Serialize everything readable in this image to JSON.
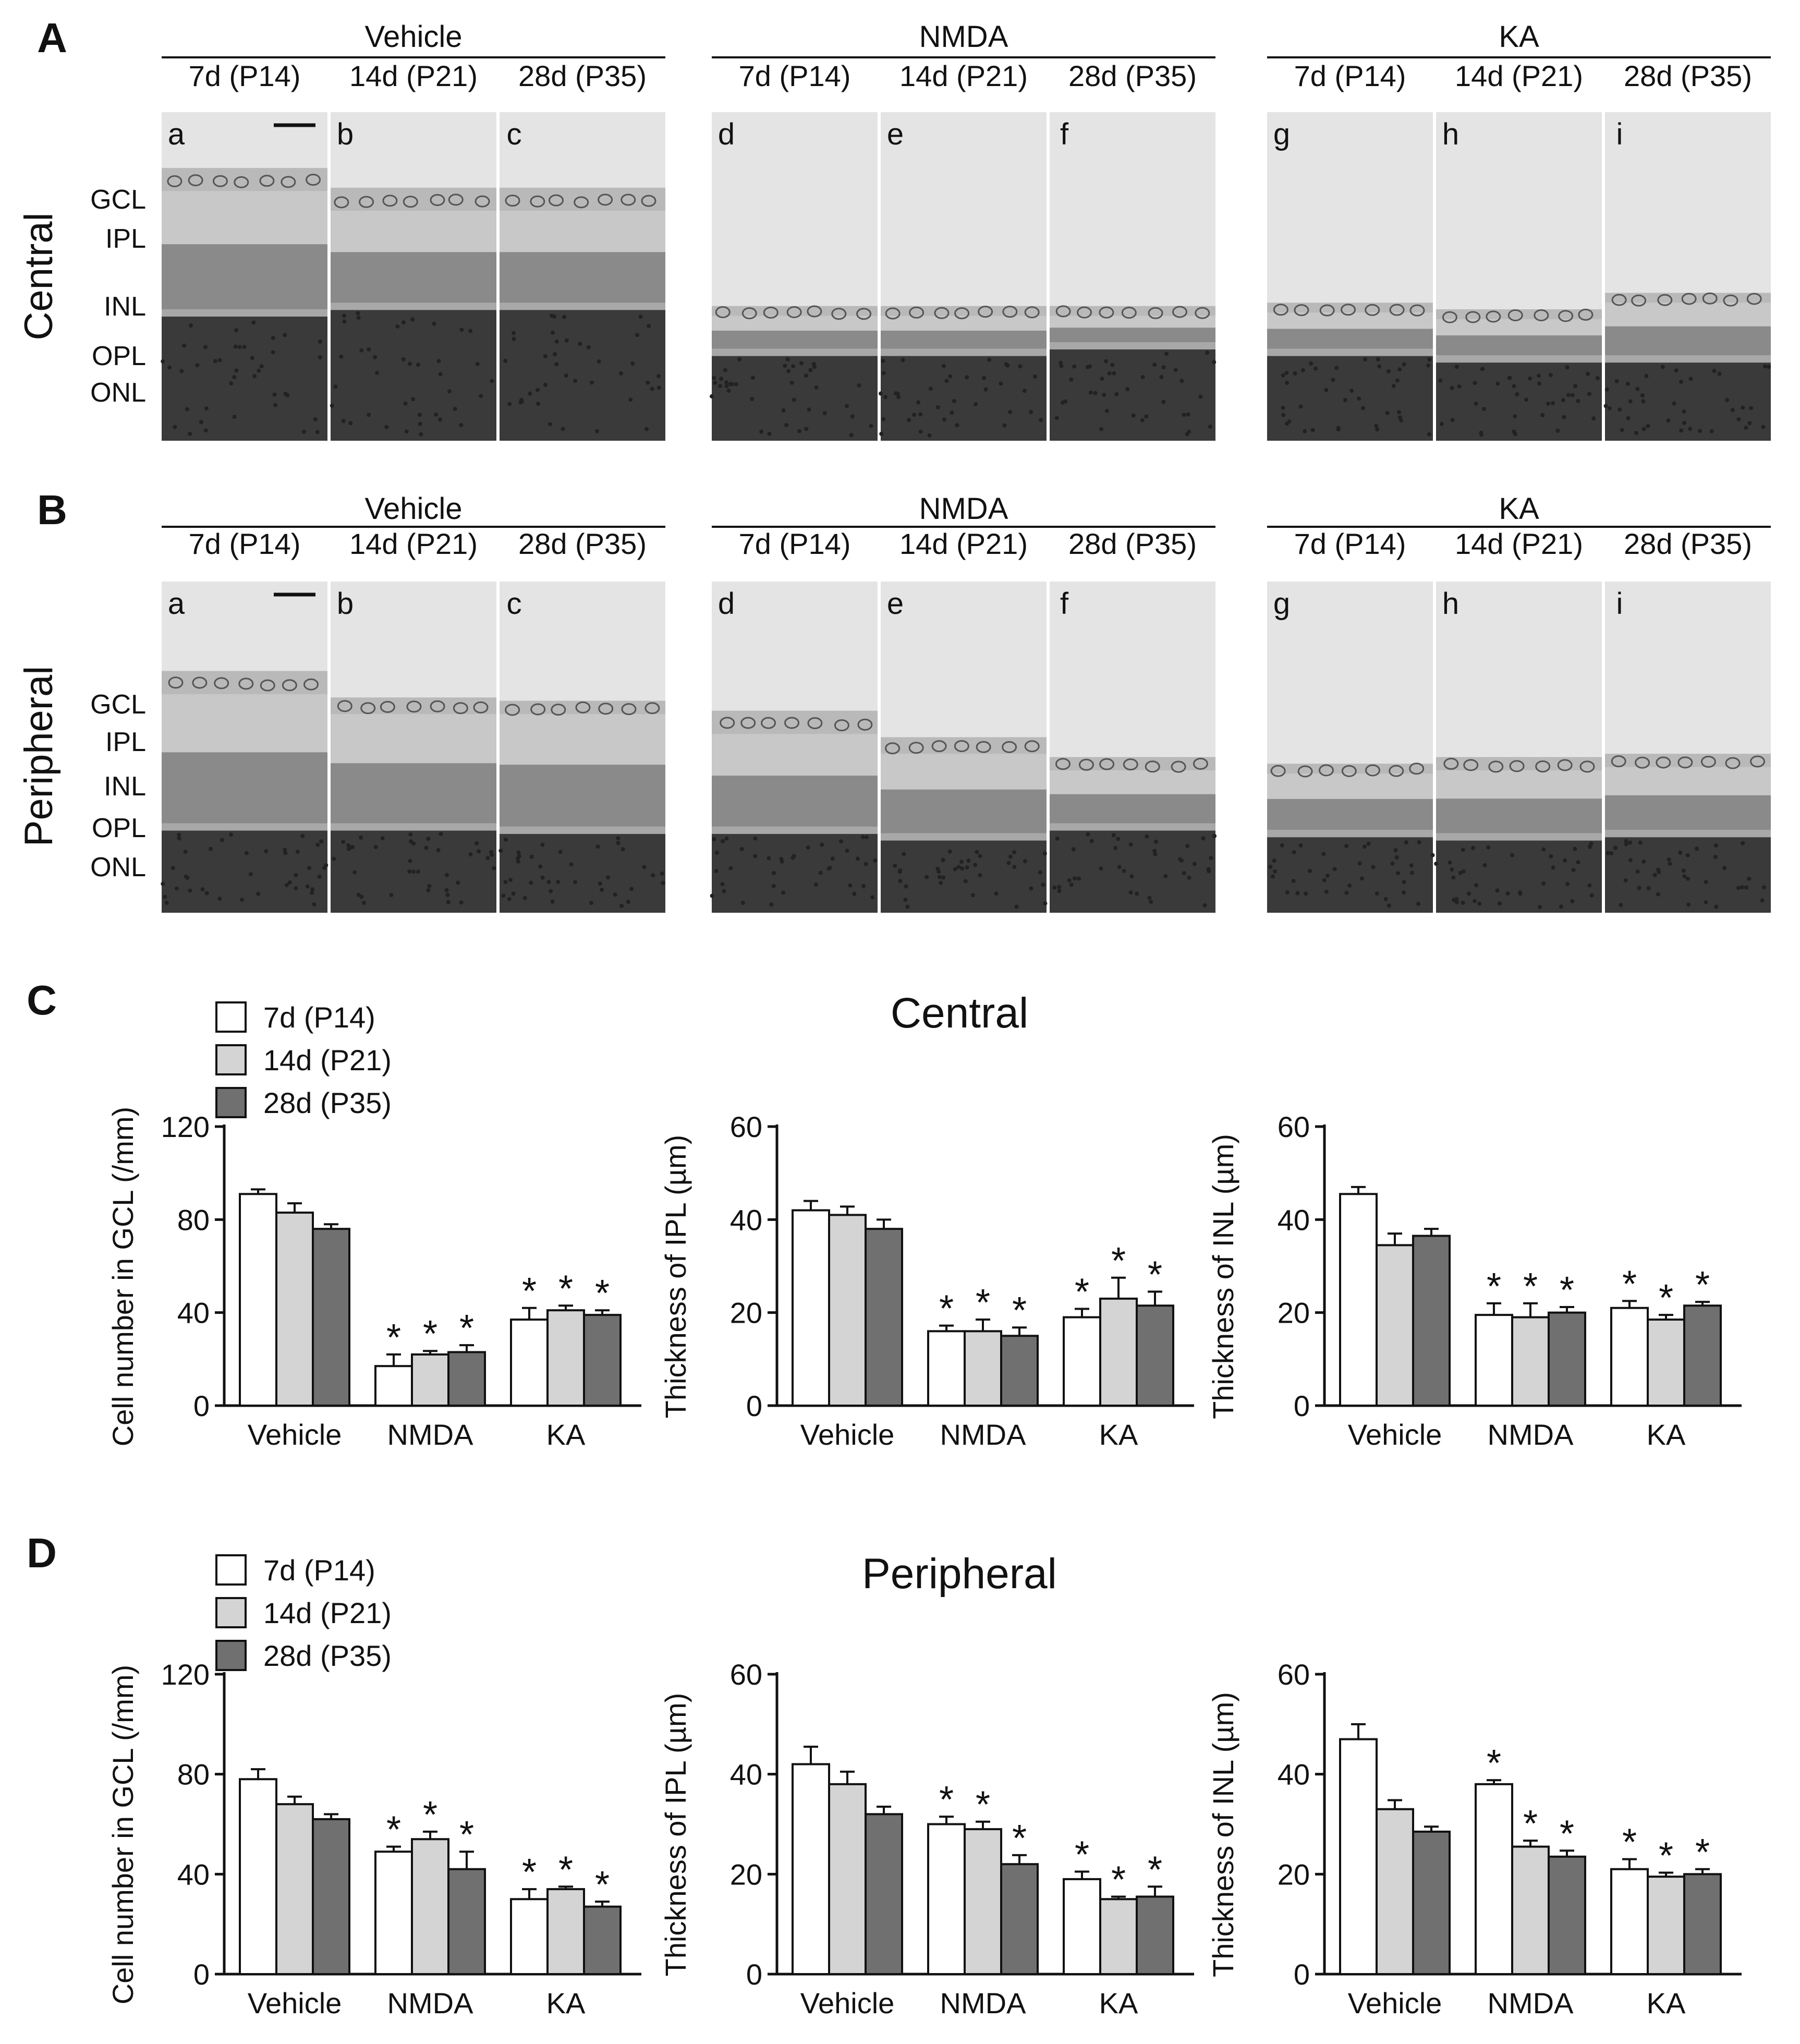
{
  "figure": {
    "panels": [
      {
        "id": "A",
        "label": "A",
        "region": "Central"
      },
      {
        "id": "B",
        "label": "B",
        "region": "Peripheral"
      },
      {
        "id": "C",
        "label": "C",
        "title": "Central"
      },
      {
        "id": "D",
        "label": "D",
        "title": "Peripheral"
      }
    ],
    "groups": [
      "Vehicle",
      "NMDA",
      "KA"
    ],
    "timepoints": [
      "7d (P14)",
      "14d (P21)",
      "28d (P35)"
    ],
    "micrograph_letters": [
      "a",
      "b",
      "c",
      "d",
      "e",
      "f",
      "g",
      "h",
      "i"
    ],
    "layers": [
      "GCL",
      "IPL",
      "INL",
      "OPL",
      "ONL"
    ],
    "legend": [
      "7d (P14)",
      "14d (P21)",
      "28d (P35)"
    ],
    "significance_marker": "*"
  },
  "colors": {
    "series": [
      "#ffffff",
      "#d4d4d4",
      "#707070"
    ],
    "axis": "#111111"
  },
  "micrographs": {
    "A": [
      {
        "tissue_top": 0.17,
        "band": 0.6,
        "ganglion": 0.24
      },
      {
        "tissue_top": 0.23,
        "band": 0.58,
        "ganglion": 0.3
      },
      {
        "tissue_top": 0.23,
        "band": 0.58,
        "ganglion": 0.3
      },
      {
        "tissue_top": 0.59,
        "band": 0.72,
        "ganglion": 0.62
      },
      {
        "tissue_top": 0.59,
        "band": 0.72,
        "ganglion": 0.62
      },
      {
        "tissue_top": 0.59,
        "band": 0.7,
        "ganglion": 0.62
      },
      {
        "tissue_top": 0.58,
        "band": 0.72,
        "ganglion": 0.61
      },
      {
        "tissue_top": 0.6,
        "band": 0.74,
        "ganglion": 0.63
      },
      {
        "tissue_top": 0.55,
        "band": 0.74,
        "ganglion": 0.58
      }
    ],
    "B": [
      {
        "tissue_top": 0.27,
        "band": 0.73,
        "ganglion": 0.34
      },
      {
        "tissue_top": 0.35,
        "band": 0.73,
        "ganglion": 0.4
      },
      {
        "tissue_top": 0.36,
        "band": 0.74,
        "ganglion": 0.4
      },
      {
        "tissue_top": 0.39,
        "band": 0.74,
        "ganglion": 0.46
      },
      {
        "tissue_top": 0.47,
        "band": 0.76,
        "ganglion": 0.52
      },
      {
        "tissue_top": 0.53,
        "band": 0.73,
        "ganglion": 0.57
      },
      {
        "tissue_top": 0.55,
        "band": 0.75,
        "ganglion": 0.58
      },
      {
        "tissue_top": 0.53,
        "band": 0.76,
        "ganglion": 0.57
      },
      {
        "tissue_top": 0.52,
        "band": 0.75,
        "ganglion": 0.56
      }
    ]
  },
  "chart_data": [
    {
      "panel": "C",
      "type": "bar",
      "title": "Central",
      "ylabel": "Cell number in GCL (/mm)",
      "ylim": [
        0,
        120
      ],
      "yticks": [
        0,
        40,
        80,
        120
      ],
      "categories": [
        "Vehicle",
        "NMDA",
        "KA"
      ],
      "series": [
        {
          "name": "7d (P14)",
          "values": [
            91,
            17,
            37
          ],
          "errors": [
            2,
            5,
            5
          ],
          "sig": [
            false,
            true,
            true
          ]
        },
        {
          "name": "14d (P21)",
          "values": [
            83,
            22,
            41
          ],
          "errors": [
            4,
            1.5,
            2
          ],
          "sig": [
            false,
            true,
            true
          ]
        },
        {
          "name": "28d (P35)",
          "values": [
            76,
            23,
            39
          ],
          "errors": [
            2,
            3,
            2
          ],
          "sig": [
            false,
            true,
            true
          ]
        }
      ]
    },
    {
      "panel": "C",
      "type": "bar",
      "title": "",
      "ylabel": "Thickness of IPL (µm)",
      "ylim": [
        0,
        60
      ],
      "yticks": [
        0,
        20,
        40,
        60
      ],
      "categories": [
        "Vehicle",
        "NMDA",
        "KA"
      ],
      "series": [
        {
          "name": "7d (P14)",
          "values": [
            42,
            16,
            19
          ],
          "errors": [
            2,
            1.2,
            1.8
          ],
          "sig": [
            false,
            true,
            true
          ]
        },
        {
          "name": "14d (P21)",
          "values": [
            41,
            16,
            23
          ],
          "errors": [
            1.8,
            2.5,
            4.5
          ],
          "sig": [
            false,
            true,
            true
          ]
        },
        {
          "name": "28d (P35)",
          "values": [
            38,
            15,
            21.5
          ],
          "errors": [
            2,
            1.8,
            3
          ],
          "sig": [
            false,
            true,
            true
          ]
        }
      ]
    },
    {
      "panel": "C",
      "type": "bar",
      "title": "",
      "ylabel": "Thickness of INL (µm)",
      "ylim": [
        0,
        60
      ],
      "yticks": [
        0,
        20,
        40,
        60
      ],
      "categories": [
        "Vehicle",
        "NMDA",
        "KA"
      ],
      "series": [
        {
          "name": "7d (P14)",
          "values": [
            45.5,
            19.5,
            21
          ],
          "errors": [
            1.5,
            2.5,
            1.5
          ],
          "sig": [
            false,
            true,
            true
          ]
        },
        {
          "name": "14d (P21)",
          "values": [
            34.5,
            19,
            18.5
          ],
          "errors": [
            2.5,
            3,
            1
          ],
          "sig": [
            false,
            true,
            true
          ]
        },
        {
          "name": "28d (P35)",
          "values": [
            36.5,
            20,
            21.5
          ],
          "errors": [
            1.5,
            1.2,
            0.8
          ],
          "sig": [
            false,
            true,
            true
          ]
        }
      ]
    },
    {
      "panel": "D",
      "type": "bar",
      "title": "Peripheral",
      "ylabel": "Cell number in GCL (/mm)",
      "ylim": [
        0,
        120
      ],
      "yticks": [
        0,
        40,
        80,
        120
      ],
      "categories": [
        "Vehicle",
        "NMDA",
        "KA"
      ],
      "series": [
        {
          "name": "7d (P14)",
          "values": [
            78,
            49,
            30
          ],
          "errors": [
            4,
            2,
            4
          ],
          "sig": [
            false,
            true,
            true
          ]
        },
        {
          "name": "14d (P21)",
          "values": [
            68,
            54,
            34
          ],
          "errors": [
            3,
            3,
            1
          ],
          "sig": [
            false,
            true,
            true
          ]
        },
        {
          "name": "28d (P35)",
          "values": [
            62,
            42,
            27
          ],
          "errors": [
            2,
            7,
            2
          ],
          "sig": [
            false,
            true,
            true
          ]
        }
      ]
    },
    {
      "panel": "D",
      "type": "bar",
      "title": "",
      "ylabel": "Thickness of IPL (µm)",
      "ylim": [
        0,
        60
      ],
      "yticks": [
        0,
        20,
        40,
        60
      ],
      "categories": [
        "Vehicle",
        "NMDA",
        "KA"
      ],
      "series": [
        {
          "name": "7d (P14)",
          "values": [
            42,
            30,
            19
          ],
          "errors": [
            3.5,
            1.5,
            1.5
          ],
          "sig": [
            false,
            true,
            true
          ]
        },
        {
          "name": "14d (P21)",
          "values": [
            38,
            29,
            15
          ],
          "errors": [
            2.5,
            1.5,
            0.5
          ],
          "sig": [
            false,
            true,
            true
          ]
        },
        {
          "name": "28d (P35)",
          "values": [
            32,
            22,
            15.5
          ],
          "errors": [
            1.5,
            1.8,
            2
          ],
          "sig": [
            false,
            true,
            true
          ]
        }
      ]
    },
    {
      "panel": "D",
      "type": "bar",
      "title": "",
      "ylabel": "Thickness of INL (µm)",
      "ylim": [
        0,
        60
      ],
      "yticks": [
        0,
        20,
        40,
        60
      ],
      "categories": [
        "Vehicle",
        "NMDA",
        "KA"
      ],
      "series": [
        {
          "name": "7d (P14)",
          "values": [
            47,
            38,
            21
          ],
          "errors": [
            3,
            0.8,
            2
          ],
          "sig": [
            false,
            true,
            true
          ]
        },
        {
          "name": "14d (P21)",
          "values": [
            33,
            25.5,
            19.5
          ],
          "errors": [
            1.8,
            1.2,
            0.8
          ],
          "sig": [
            false,
            true,
            true
          ]
        },
        {
          "name": "28d (P35)",
          "values": [
            28.5,
            23.5,
            20
          ],
          "errors": [
            1,
            1.2,
            1
          ],
          "sig": [
            false,
            true,
            true
          ]
        }
      ]
    }
  ]
}
